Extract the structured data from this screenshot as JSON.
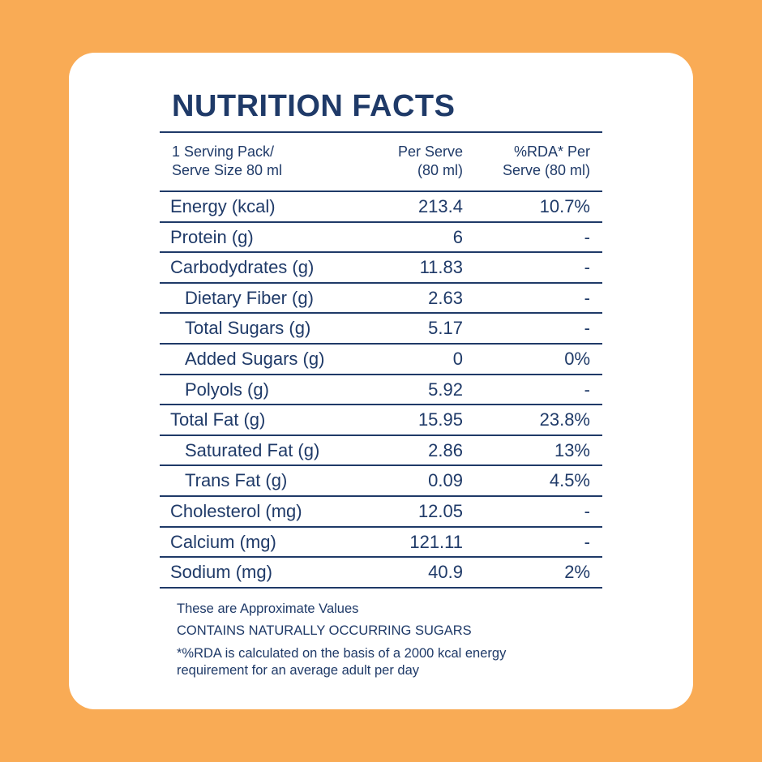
{
  "title": "NUTRITION FACTS",
  "table": {
    "header": [
      [
        "1 Serving Pack/",
        "Serve Size 80 ml"
      ],
      [
        "Per Serve",
        "(80 ml)"
      ],
      [
        "%RDA* Per",
        "Serve (80 ml)"
      ]
    ],
    "rows": [
      {
        "nutrient": "Energy (kcal)",
        "per_serve": "213.4",
        "rda": "10.7%",
        "indent": false
      },
      {
        "nutrient": "Protein (g)",
        "per_serve": "6",
        "rda": "-",
        "indent": false
      },
      {
        "nutrient": "Carbodydrates (g)",
        "per_serve": "11.83",
        "rda": "-",
        "indent": false
      },
      {
        "nutrient": "Dietary Fiber (g)",
        "per_serve": "2.63",
        "rda": "-",
        "indent": true
      },
      {
        "nutrient": "Total Sugars (g)",
        "per_serve": "5.17",
        "rda": "-",
        "indent": true
      },
      {
        "nutrient": "Added Sugars (g)",
        "per_serve": "0",
        "rda": "0%",
        "indent": true
      },
      {
        "nutrient": "Polyols (g)",
        "per_serve": "5.92",
        "rda": "-",
        "indent": true
      },
      {
        "nutrient": "Total Fat (g)",
        "per_serve": "15.95",
        "rda": "23.8%",
        "indent": false
      },
      {
        "nutrient": "Saturated Fat (g)",
        "per_serve": "2.86",
        "rda": "13%",
        "indent": true
      },
      {
        "nutrient": "Trans Fat (g)",
        "per_serve": "0.09",
        "rda": "4.5%",
        "indent": true
      },
      {
        "nutrient": "Cholesterol (mg)",
        "per_serve": "12.05",
        "rda": "-",
        "indent": false
      },
      {
        "nutrient": "Calcium (mg)",
        "per_serve": "121.11",
        "rda": "-",
        "indent": false
      },
      {
        "nutrient": "Sodium (mg)",
        "per_serve": "40.9",
        "rda": "2%",
        "indent": false
      }
    ]
  },
  "notes": [
    "These are Approximate Values",
    "CONTAINS NATURALLY OCCURRING SUGARS",
    "*%RDA is calculated on the basis of a 2000 kcal energy",
    "requirement for an average adult per day"
  ]
}
